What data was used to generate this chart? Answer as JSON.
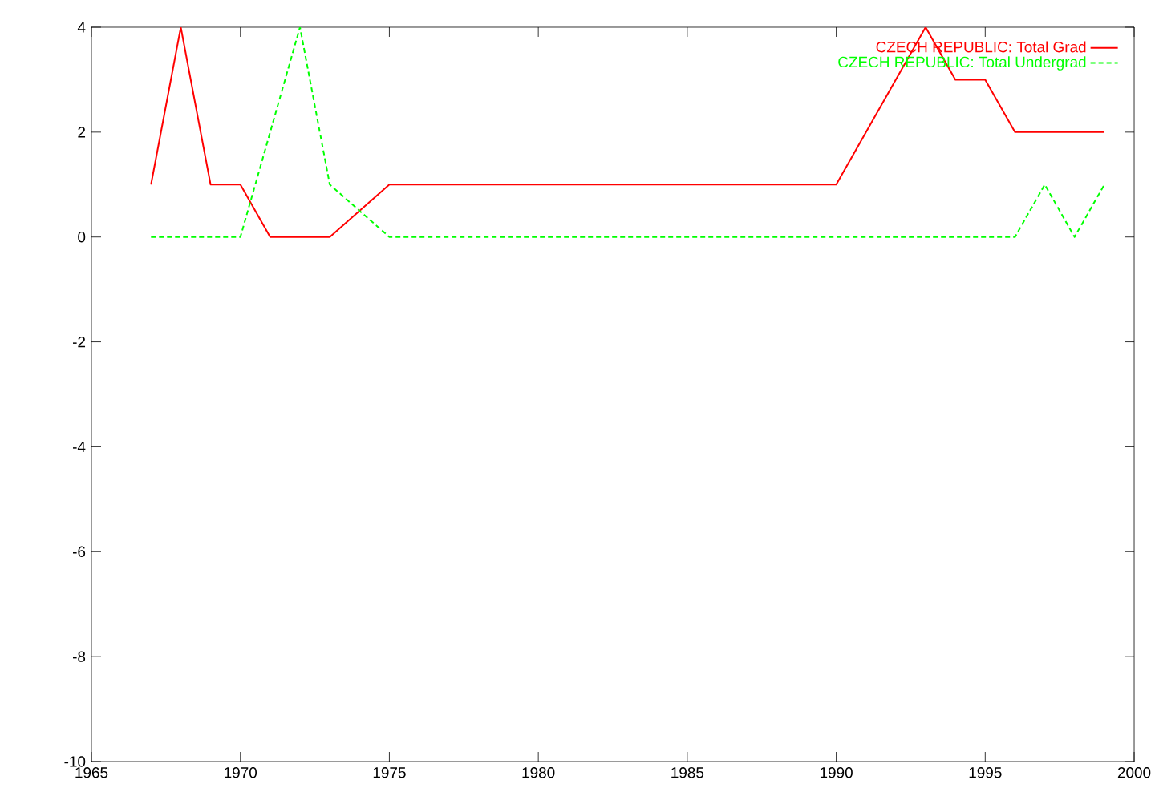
{
  "chart_data": {
    "type": "line",
    "xlim": [
      1965,
      2000
    ],
    "ylim": [
      -10,
      4
    ],
    "xticks": [
      1965,
      1970,
      1975,
      1980,
      1985,
      1990,
      1995,
      2000
    ],
    "yticks": [
      -10,
      -8,
      -6,
      -4,
      -2,
      0,
      2,
      4
    ],
    "grid": false,
    "legend": "top right",
    "marker": "none",
    "series": [
      {
        "name": "CZECH REPUBLIC: Total Grad",
        "color": "#ff0000",
        "line_style": "solid",
        "x": [
          1967,
          1968,
          1969,
          1970,
          1971,
          1972,
          1973,
          1975,
          1976,
          1977,
          1978,
          1979,
          1980,
          1981,
          1982,
          1983,
          1984,
          1985,
          1986,
          1987,
          1988,
          1989,
          1990,
          1993,
          1994,
          1995,
          1996,
          1997,
          1998,
          1999
        ],
        "values": [
          1,
          4,
          1,
          1,
          0,
          0,
          0,
          1,
          1,
          1,
          1,
          1,
          1,
          1,
          1,
          1,
          1,
          1,
          1,
          1,
          1,
          1,
          1,
          4,
          3,
          3,
          2,
          2,
          2,
          2
        ]
      },
      {
        "name": "CZECH REPUBLIC: Total Undergrad",
        "color": "#00ff00",
        "line_style": "dashed",
        "x": [
          1967,
          1968,
          1969,
          1970,
          1972,
          1973,
          1975,
          1976,
          1977,
          1978,
          1979,
          1980,
          1981,
          1982,
          1983,
          1984,
          1985,
          1986,
          1987,
          1988,
          1989,
          1990,
          1991,
          1992,
          1993,
          1994,
          1995,
          1996,
          1997,
          1998,
          1999
        ],
        "values": [
          0,
          0,
          0,
          0,
          4,
          1,
          0,
          0,
          0,
          0,
          0,
          0,
          0,
          0,
          0,
          0,
          0,
          0,
          0,
          0,
          0,
          0,
          0,
          0,
          0,
          0,
          0,
          0,
          1,
          0,
          1
        ]
      }
    ]
  }
}
